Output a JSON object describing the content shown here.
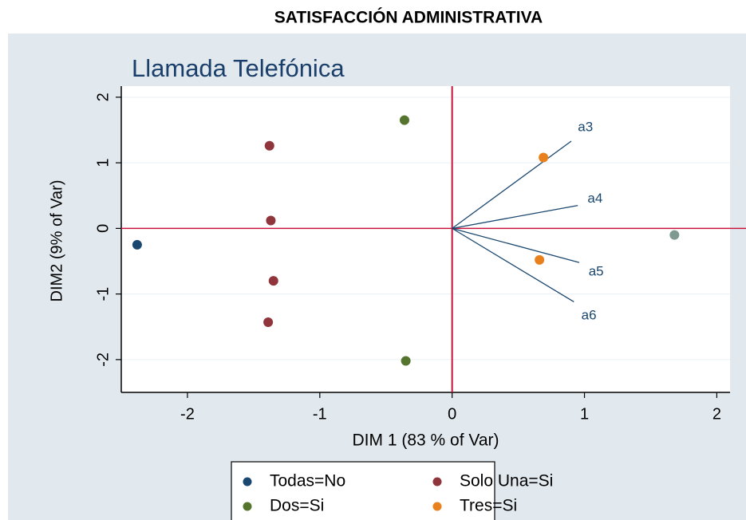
{
  "chart_data": {
    "type": "scatter",
    "header": "SATISFACCIÓN  ADMINISTRATIVA",
    "title": "Llamada Telefónica",
    "x_label": "DIM 1 (83 % of Var)",
    "y_label": "DIM2 (9% of Var)",
    "xlim": [
      -2.5,
      2.1
    ],
    "ylim": [
      -2.5,
      2.12
    ],
    "xticks": [
      -2,
      -1,
      0,
      1,
      2
    ],
    "yticks": [
      -2,
      -1,
      0,
      1,
      2
    ],
    "grid": true,
    "xline": 0,
    "yline": 0,
    "reference_color": "#c8143c",
    "series": [
      {
        "name": "Todas=No",
        "color": "#1a476f",
        "x": [
          -2.38
        ],
        "y": [
          -0.25
        ]
      },
      {
        "name": "Solo Una=Si",
        "color": "#90353b",
        "x": [
          -1.38,
          -1.37,
          -1.35,
          -1.39
        ],
        "y": [
          1.26,
          0.12,
          -0.8,
          -1.43
        ]
      },
      {
        "name": "Dos=Si",
        "color": "#55752f",
        "x": [
          -0.36,
          -0.35
        ],
        "y": [
          1.65,
          -2.02
        ]
      },
      {
        "name": "Tres=Si",
        "color": "#e8801e",
        "x": [
          0.69,
          0.66
        ],
        "y": [
          1.08,
          -0.48
        ]
      },
      {
        "color": "#7f9a90",
        "x": [
          1.68
        ],
        "y": [
          -0.1
        ]
      }
    ],
    "loadings": {
      "color": "#1a476f",
      "labels": [
        "a3",
        "a4",
        "a5",
        "a6"
      ],
      "x": [
        0.9,
        0.95,
        0.96,
        0.92
      ],
      "y": [
        1.33,
        0.35,
        -0.52,
        -1.12
      ]
    }
  }
}
